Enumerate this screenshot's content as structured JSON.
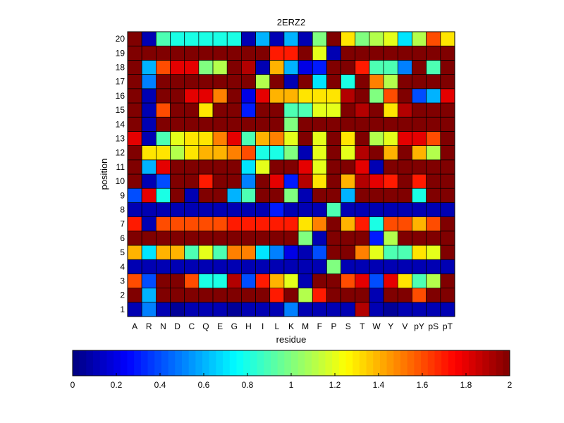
{
  "chart_data": {
    "type": "heatmap",
    "title": "2ERZ2",
    "xlabel": "residue",
    "ylabel": "position",
    "x_categories": [
      "A",
      "R",
      "N",
      "D",
      "C",
      "Q",
      "E",
      "G",
      "H",
      "I",
      "L",
      "K",
      "M",
      "F",
      "P",
      "S",
      "T",
      "W",
      "Y",
      "V",
      "pY",
      "pS",
      "pT"
    ],
    "y_categories": [
      "1",
      "2",
      "3",
      "4",
      "5",
      "6",
      "7",
      "8",
      "9",
      "10",
      "11",
      "12",
      "13",
      "14",
      "15",
      "16",
      "17",
      "18",
      "19",
      "20"
    ],
    "colorbar": {
      "colormap": "jet",
      "range": [
        0,
        2
      ],
      "ticks": [
        "0",
        "0.2",
        "0.4",
        "0.6",
        "0.8",
        "1",
        "1.2",
        "1.4",
        "1.6",
        "1.8",
        "2"
      ]
    },
    "values": [
      [
        0.1,
        0.5,
        0.1,
        0.05,
        0.1,
        0.1,
        0.1,
        0.05,
        0.1,
        0.1,
        0.1,
        0.5,
        0.1,
        0.1,
        0.1,
        0.1,
        1.9,
        0.1,
        0.05,
        0.1,
        0.1,
        0.1,
        0.1
      ],
      [
        2,
        0.6,
        2,
        2,
        2,
        2,
        2,
        2,
        2,
        2,
        1.7,
        2,
        1.1,
        1.7,
        2,
        2,
        2,
        0.1,
        2,
        2,
        1.6,
        2,
        2
      ],
      [
        1.6,
        0.4,
        2,
        2,
        1.6,
        0.8,
        0.8,
        1.9,
        0.4,
        1.7,
        1.4,
        1.2,
        0.1,
        2,
        2,
        1.6,
        1.8,
        0.4,
        1.8,
        1.3,
        0.9,
        1.1,
        2
      ],
      [
        0.1,
        0.1,
        0.1,
        0.1,
        0.1,
        0.1,
        0.1,
        0.1,
        0.1,
        0.1,
        0.1,
        0.1,
        0.1,
        0.1,
        1.0,
        0.1,
        0.1,
        0.1,
        0.1,
        0.1,
        0.1,
        0.1,
        0.1
      ],
      [
        1.4,
        0.7,
        1.4,
        1.4,
        0.9,
        1.2,
        0.9,
        1.5,
        1.5,
        0.7,
        0.5,
        0.2,
        0.1,
        0.4,
        2,
        2,
        1.5,
        1.2,
        0.9,
        0.9,
        1.3,
        1.2,
        2
      ],
      [
        2,
        2,
        2,
        2,
        2,
        2,
        2,
        2,
        2,
        2,
        2,
        2,
        1.0,
        0.1,
        2,
        2,
        2,
        0.3,
        1.1,
        2,
        2,
        2,
        2
      ],
      [
        1.7,
        0.1,
        1.6,
        1.6,
        1.6,
        1.6,
        1.6,
        1.7,
        1.7,
        1.7,
        1.7,
        1.7,
        1.3,
        1.5,
        2,
        1.4,
        1.7,
        0.8,
        1.6,
        1.6,
        1.4,
        1.6,
        2
      ],
      [
        0.1,
        0.1,
        0.1,
        0.1,
        0.1,
        0.1,
        0.1,
        0.1,
        0.1,
        0.1,
        0.3,
        0.1,
        0.1,
        0.1,
        0.9,
        0.1,
        0.1,
        0.1,
        0.1,
        0.1,
        0.1,
        0.1,
        0.1
      ],
      [
        0.4,
        1.8,
        0.8,
        2,
        0.1,
        2,
        2,
        0.6,
        0.9,
        2,
        2,
        1.0,
        0.1,
        2,
        2,
        0.6,
        2,
        2,
        2,
        2,
        0.8,
        2,
        2
      ],
      [
        2,
        0.1,
        0.4,
        2,
        2,
        1.7,
        2,
        2,
        0.5,
        2,
        1.8,
        0.3,
        1.9,
        1.3,
        2,
        1.4,
        1.9,
        1.8,
        1.7,
        2,
        1.7,
        2,
        2
      ],
      [
        2,
        0.6,
        1.8,
        2,
        2,
        2,
        2,
        2,
        0.7,
        1.2,
        2,
        2,
        1.8,
        1.2,
        2,
        2,
        1.8,
        0.1,
        2,
        2,
        2,
        2,
        2
      ],
      [
        2,
        1.3,
        1.3,
        1.1,
        1.3,
        1.4,
        1.4,
        1.5,
        1.6,
        0.8,
        0.8,
        1.0,
        0.1,
        1.2,
        2,
        1.2,
        1.9,
        2,
        1.4,
        2,
        1.4,
        1.1,
        2
      ],
      [
        1.8,
        0.1,
        0.9,
        1.2,
        1.3,
        1.3,
        1.5,
        1.8,
        0.9,
        1.4,
        1.5,
        1.2,
        2,
        1.2,
        2,
        1.3,
        2,
        1.1,
        1.2,
        1.8,
        1.8,
        1.6,
        2
      ],
      [
        2,
        0.1,
        2,
        2,
        2,
        2,
        2,
        2,
        2,
        2,
        2,
        1.0,
        2,
        2,
        2,
        2,
        2,
        2,
        2,
        2,
        2,
        2,
        2
      ],
      [
        2,
        0.1,
        1.6,
        2,
        2,
        1.3,
        2,
        2,
        0.3,
        2,
        2,
        0.9,
        0.9,
        1.2,
        1.2,
        2,
        1.9,
        2,
        1.3,
        1.9,
        2,
        2,
        2
      ],
      [
        2,
        0.1,
        2,
        2,
        1.8,
        1.8,
        1.5,
        2,
        0.2,
        1.8,
        1.4,
        1.4,
        1.3,
        1.3,
        1.3,
        1.9,
        2,
        1.0,
        1.6,
        2,
        0.4,
        0.6,
        1.8
      ],
      [
        2,
        0.5,
        2,
        2,
        2,
        2,
        2,
        2,
        2,
        1.1,
        2,
        0.1,
        2,
        0.7,
        2,
        0.8,
        2,
        1.5,
        1.1,
        2,
        2,
        2,
        2
      ],
      [
        2,
        0.6,
        1.6,
        1.8,
        1.8,
        1.0,
        1.1,
        2,
        1.9,
        0.1,
        1.4,
        0.6,
        0.2,
        0.3,
        2,
        2,
        1.7,
        0.9,
        0.9,
        0.5,
        2,
        0.9,
        2
      ],
      [
        2,
        2,
        2,
        2,
        2,
        2,
        2,
        2,
        2,
        2,
        1.7,
        1.7,
        2,
        1.2,
        0.1,
        2,
        2,
        2,
        2,
        2,
        2,
        2,
        2
      ],
      [
        2,
        0.1,
        0.9,
        0.8,
        0.8,
        0.8,
        0.8,
        0.8,
        0.1,
        0.6,
        0.1,
        0.6,
        0.1,
        1.0,
        2,
        1.3,
        1.0,
        1.1,
        1.2,
        0.7,
        1.1,
        1.6,
        1.3
      ]
    ]
  }
}
